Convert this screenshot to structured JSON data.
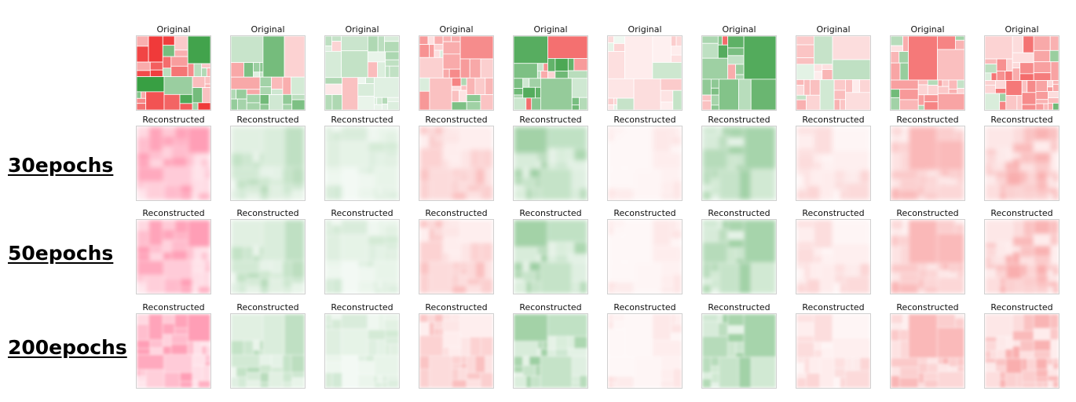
{
  "row_labels": {
    "r30": "30epochs",
    "r50": "50epochs",
    "r200": "200epochs"
  },
  "titles": {
    "original": "Original",
    "reconstructed": "Reconstructed"
  },
  "samples": [
    {
      "tone": "red",
      "intensity": 0.95
    },
    {
      "tone": "green",
      "intensity": 0.6
    },
    {
      "tone": "green",
      "intensity": 0.35
    },
    {
      "tone": "red",
      "intensity": 0.55
    },
    {
      "tone": "green",
      "intensity": 0.75
    },
    {
      "tone": "red",
      "intensity": 0.25
    },
    {
      "tone": "green",
      "intensity": 0.8
    },
    {
      "tone": "red",
      "intensity": 0.35
    },
    {
      "tone": "red",
      "intensity": 0.6
    },
    {
      "tone": "red",
      "intensity": 0.65
    }
  ],
  "colors": {
    "red": "#f03a3a",
    "green": "#2f9a3a",
    "pink": "#ff4f7a",
    "background": "#ffffff"
  }
}
